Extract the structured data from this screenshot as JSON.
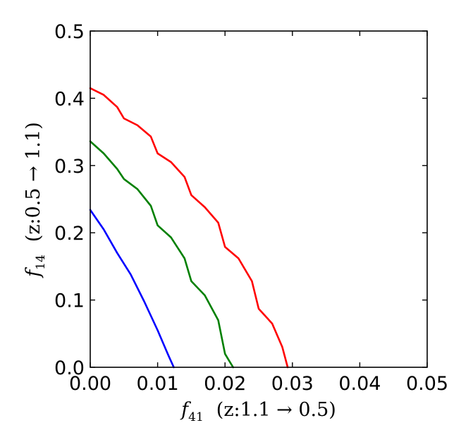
{
  "chart_data": {
    "type": "line",
    "title": "",
    "xlabel": "f_41 (z:1.1→0.5)",
    "ylabel": "f_14 (z:0.5→1.1)",
    "xlabel_parts": {
      "symbol": "f",
      "sub": "41",
      "text": "(z:1.1 → 0.5)"
    },
    "ylabel_parts": {
      "symbol": "f",
      "sub": "14",
      "text": "(z:0.5 → 1.1)"
    },
    "xlim": [
      0.0,
      0.05
    ],
    "ylim": [
      0.0,
      0.5
    ],
    "xticks": [
      "0.00",
      "0.01",
      "0.02",
      "0.03",
      "0.04",
      "0.05"
    ],
    "yticks": [
      "0.0",
      "0.1",
      "0.2",
      "0.3",
      "0.4",
      "0.5"
    ],
    "grid": false,
    "legend": "none",
    "series": [
      {
        "color": "#0000ff",
        "x": [
          0.0,
          0.002,
          0.004,
          0.006,
          0.008,
          0.01,
          0.0115,
          0.0124
        ],
        "y": [
          0.234,
          0.205,
          0.17,
          0.138,
          0.098,
          0.055,
          0.02,
          0.0
        ]
      },
      {
        "color": "#008000",
        "x": [
          0.0,
          0.002,
          0.004,
          0.005,
          0.007,
          0.009,
          0.01,
          0.012,
          0.014,
          0.015,
          0.017,
          0.019,
          0.02,
          0.0206,
          0.0212
        ],
        "y": [
          0.336,
          0.318,
          0.295,
          0.28,
          0.265,
          0.24,
          0.211,
          0.193,
          0.162,
          0.128,
          0.107,
          0.07,
          0.02,
          0.01,
          0.0
        ]
      },
      {
        "color": "#ff0000",
        "x": [
          0.0,
          0.002,
          0.004,
          0.005,
          0.007,
          0.009,
          0.01,
          0.012,
          0.014,
          0.015,
          0.017,
          0.019,
          0.02,
          0.022,
          0.024,
          0.025,
          0.027,
          0.0285,
          0.0293
        ],
        "y": [
          0.415,
          0.405,
          0.387,
          0.37,
          0.36,
          0.343,
          0.318,
          0.305,
          0.283,
          0.256,
          0.238,
          0.215,
          0.179,
          0.162,
          0.128,
          0.087,
          0.065,
          0.03,
          0.0
        ]
      }
    ]
  }
}
